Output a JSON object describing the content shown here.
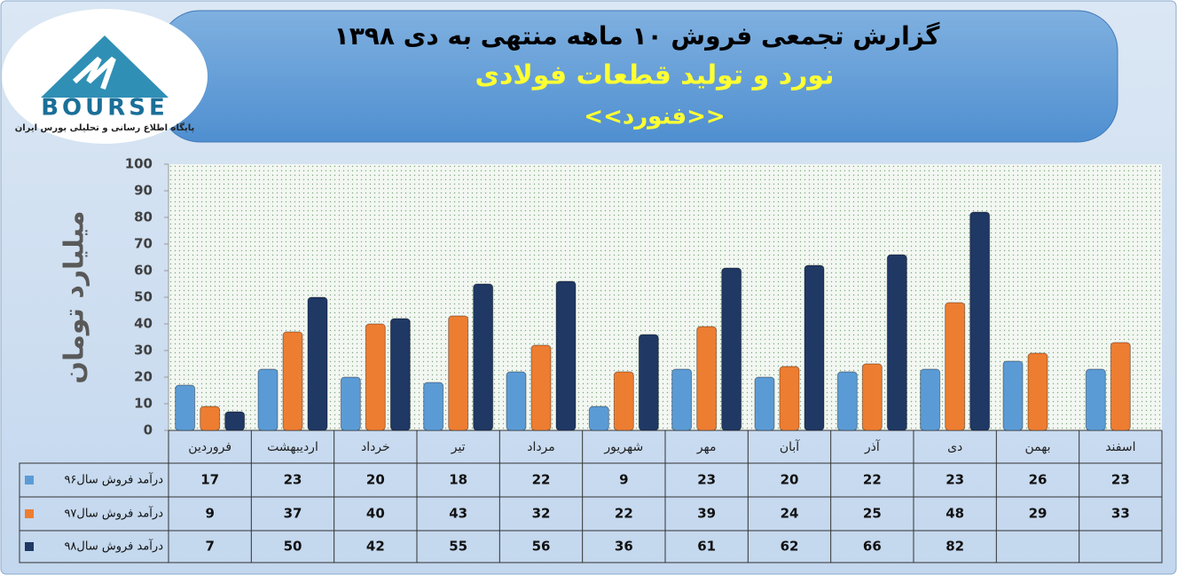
{
  "logo": {
    "name": "BOURSE",
    "tagline": "پایگاه اطلاع رسانی و تحلیلی بورس ایران"
  },
  "chart_data": {
    "type": "bar",
    "title": "گزارش تجمعی فروش ۱۰ ماهه منتهی به دی ۱۳۹۸",
    "subtitle": "نورد و تولید قطعات فولادی",
    "annotation": "<<فنورد>>",
    "y_label": "میلیارد تومان",
    "categories": [
      "فروردین",
      "اردیبهشت",
      "خرداد",
      "تیر",
      "مرداد",
      "شهریور",
      "مهر",
      "آبان",
      "آذر",
      "دی",
      "بهمن",
      "اسفند"
    ],
    "series": [
      {
        "name": "درآمد فروش سال۹۶",
        "color": "#5b9bd5",
        "values": [
          17,
          23,
          20,
          18,
          22,
          9,
          23,
          20,
          22,
          23,
          26,
          23
        ]
      },
      {
        "name": "درآمد فروش سال۹۷",
        "color": "#ed7d31",
        "values": [
          9,
          37,
          40,
          43,
          32,
          22,
          39,
          24,
          25,
          48,
          29,
          33
        ]
      },
      {
        "name": "درآمد فروش سال۹۸",
        "color": "#1f3864",
        "values": [
          7,
          50,
          42,
          55,
          56,
          36,
          61,
          62,
          66,
          82,
          null,
          null
        ]
      }
    ],
    "ylim": [
      0,
      100
    ],
    "yticks": [
      0,
      10,
      20,
      30,
      40,
      50,
      60,
      70,
      80,
      90,
      100
    ],
    "grid": false
  }
}
